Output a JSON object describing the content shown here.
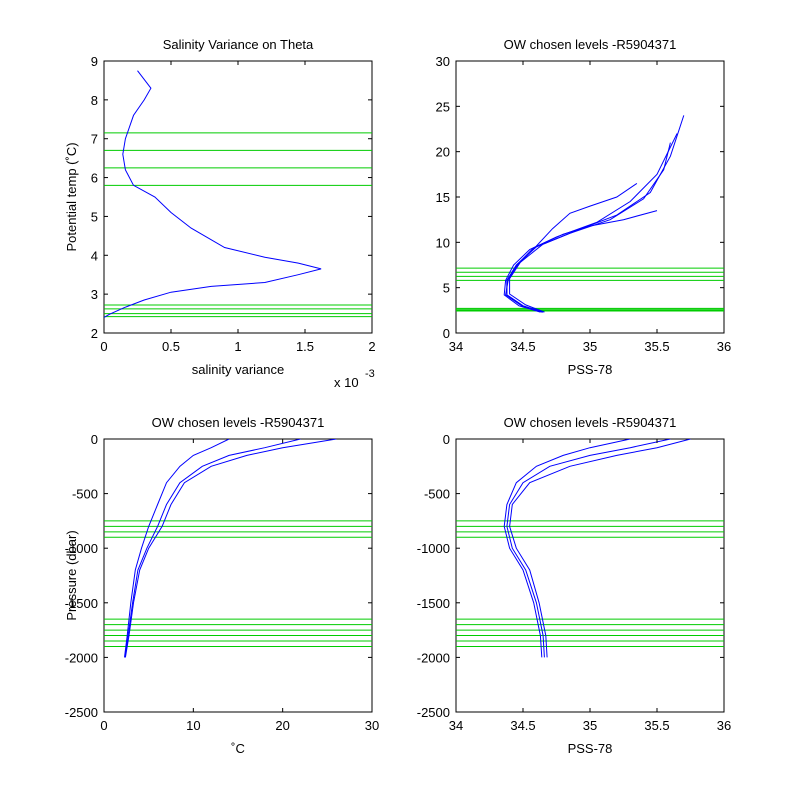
{
  "figure": {
    "colors": {
      "profile": "#0000ff",
      "levels": "#00cc00",
      "axes": "#000000"
    }
  },
  "chart_data": [
    {
      "id": "p1",
      "type": "line",
      "title": "Salinity Variance on Theta",
      "xlabel": "salinity variance",
      "ylabel": "Potential temp (˚C)",
      "x_multiplier": "x 10",
      "x_exponent": "-3",
      "xlim": [
        0,
        2
      ],
      "ylim": [
        2,
        9
      ],
      "xticks": [
        0,
        0.5,
        1,
        1.5,
        2
      ],
      "xticklabels": [
        "0",
        "0.5",
        "1",
        "1.5",
        "2"
      ],
      "yticks": [
        2,
        3,
        4,
        5,
        6,
        7,
        8,
        9
      ],
      "yticklabels": [
        "2",
        "3",
        "4",
        "5",
        "6",
        "7",
        "8",
        "9"
      ],
      "series": [
        {
          "x": [
            0.25,
            0.35,
            0.3,
            0.22,
            0.16,
            0.14,
            0.16,
            0.22,
            0.38,
            0.5,
            0.65,
            0.9,
            1.2,
            1.45,
            1.62,
            1.45,
            1.2,
            0.8,
            0.5,
            0.3,
            0.15,
            0.04,
            0.0
          ],
          "y": [
            8.75,
            8.3,
            8.0,
            7.6,
            7.0,
            6.6,
            6.2,
            5.8,
            5.5,
            5.1,
            4.7,
            4.2,
            3.95,
            3.8,
            3.65,
            3.5,
            3.3,
            3.2,
            3.05,
            2.85,
            2.65,
            2.48,
            2.4
          ]
        }
      ],
      "levels_y": [
        7.15,
        6.7,
        6.25,
        5.8,
        2.72,
        2.62,
        2.5,
        2.42
      ],
      "levels_axis": "y"
    },
    {
      "id": "p2",
      "type": "line",
      "title": "OW chosen levels -R5904371",
      "xlabel": "PSS-78",
      "ylabel": "",
      "xlim": [
        34,
        36
      ],
      "ylim": [
        0,
        30
      ],
      "xticks": [
        34,
        34.5,
        35,
        35.5,
        36
      ],
      "xticklabels": [
        "34",
        "34.5",
        "35",
        "35.5",
        "36"
      ],
      "yticks": [
        0,
        5,
        10,
        15,
        20,
        25,
        30
      ],
      "yticklabels": [
        "0",
        "5",
        "10",
        "15",
        "20",
        "25",
        "30"
      ],
      "series": [
        {
          "x": [
            34.65,
            34.5,
            34.38,
            34.38,
            34.45,
            34.6,
            34.85,
            35.15,
            35.4,
            35.55,
            35.6
          ],
          "y": [
            2.3,
            3.0,
            4.2,
            5.8,
            7.5,
            9.5,
            11.0,
            12.5,
            14.8,
            18.0,
            21.0
          ]
        },
        {
          "x": [
            34.63,
            34.47,
            34.36,
            34.37,
            34.43,
            34.55,
            34.75,
            35.05,
            35.3,
            35.5,
            35.65
          ],
          "y": [
            2.3,
            3.0,
            4.2,
            5.8,
            7.5,
            9.2,
            10.6,
            12.2,
            14.5,
            17.5,
            22.0
          ]
        },
        {
          "x": [
            34.66,
            34.52,
            34.4,
            34.4,
            34.48,
            34.65,
            34.9,
            35.2,
            35.45,
            35.6,
            35.7
          ],
          "y": [
            2.3,
            3.1,
            4.3,
            6.0,
            7.8,
            9.8,
            11.3,
            13.0,
            15.5,
            19.5,
            24.0
          ]
        },
        {
          "x": [
            34.64,
            34.49,
            34.37,
            34.39,
            34.46,
            34.58,
            34.8,
            35.0,
            35.25,
            35.5
          ],
          "y": [
            2.3,
            3.0,
            4.2,
            5.9,
            7.6,
            9.4,
            10.9,
            11.8,
            12.5,
            13.5
          ]
        },
        {
          "x": [
            34.65,
            34.5,
            34.38,
            34.38,
            34.46,
            34.6,
            34.72,
            34.85,
            35.0,
            35.2,
            35.35
          ],
          "y": [
            2.3,
            3.0,
            4.2,
            5.8,
            7.5,
            9.6,
            11.5,
            13.2,
            14.0,
            15.0,
            16.5
          ]
        }
      ],
      "levels_y": [
        7.15,
        6.7,
        6.25,
        5.8,
        2.72,
        2.62,
        2.5,
        2.42
      ],
      "levels_axis": "y"
    },
    {
      "id": "p3",
      "type": "line",
      "title": "OW chosen levels -R5904371",
      "xlabel": "˚C",
      "ylabel": "Pressure (dbar)",
      "xlim": [
        0,
        30
      ],
      "ylim": [
        -2500,
        0
      ],
      "xticks": [
        0,
        10,
        20,
        30
      ],
      "xticklabels": [
        "0",
        "10",
        "20",
        "30"
      ],
      "yticks": [
        -2500,
        -2000,
        -1500,
        -1000,
        -500,
        0
      ],
      "yticklabels": [
        "-2500",
        "-2000",
        "-1500",
        "-1000",
        "-500",
        "0"
      ],
      "series": [
        {
          "x": [
            26.0,
            20.0,
            16.0,
            12.0,
            9.0,
            7.5,
            6.5,
            5.0,
            4.0,
            3.3,
            2.8,
            2.4
          ],
          "y": [
            0,
            -80,
            -150,
            -250,
            -400,
            -600,
            -800,
            -1000,
            -1200,
            -1500,
            -1800,
            -2000
          ]
        },
        {
          "x": [
            14.0,
            12.0,
            10.0,
            8.5,
            7.0,
            6.0,
            5.0,
            4.2,
            3.5,
            3.0,
            2.6,
            2.3
          ],
          "y": [
            0,
            -80,
            -150,
            -250,
            -400,
            -600,
            -800,
            -1000,
            -1200,
            -1500,
            -1800,
            -2000
          ]
        },
        {
          "x": [
            22.0,
            18.0,
            14.0,
            11.0,
            8.5,
            7.0,
            6.0,
            4.8,
            3.8,
            3.2,
            2.7,
            2.35
          ],
          "y": [
            0,
            -80,
            -150,
            -250,
            -400,
            -600,
            -800,
            -1000,
            -1200,
            -1500,
            -1800,
            -2000
          ]
        }
      ],
      "levels_y": [
        -750,
        -800,
        -850,
        -900,
        -1650,
        -1700,
        -1750,
        -1800,
        -1850,
        -1900
      ],
      "levels_axis": "y"
    },
    {
      "id": "p4",
      "type": "line",
      "title": "OW chosen levels -R5904371",
      "xlabel": "PSS-78",
      "ylabel": "",
      "xlim": [
        34,
        36
      ],
      "ylim": [
        -2500,
        0
      ],
      "xticks": [
        34,
        34.5,
        35,
        35.5,
        36
      ],
      "xticklabels": [
        "34",
        "34.5",
        "35",
        "35.5",
        "36"
      ],
      "yticks": [
        -2500,
        -2000,
        -1500,
        -1000,
        -500,
        0
      ],
      "yticklabels": [
        "-2500",
        "-2000",
        "-1500",
        "-1000",
        "-500",
        "0"
      ],
      "series": [
        {
          "x": [
            35.6,
            35.3,
            35.0,
            34.7,
            34.5,
            34.4,
            34.38,
            34.42,
            34.52,
            34.6,
            34.65,
            34.66
          ],
          "y": [
            0,
            -80,
            -150,
            -250,
            -400,
            -600,
            -800,
            -1000,
            -1200,
            -1500,
            -1800,
            -2000
          ]
        },
        {
          "x": [
            35.3,
            35.0,
            34.8,
            34.6,
            34.45,
            34.38,
            34.36,
            34.4,
            34.5,
            34.58,
            34.63,
            34.64
          ],
          "y": [
            0,
            -80,
            -150,
            -250,
            -400,
            -600,
            -800,
            -1000,
            -1200,
            -1500,
            -1800,
            -2000
          ]
        },
        {
          "x": [
            35.75,
            35.5,
            35.2,
            34.85,
            34.55,
            34.42,
            34.4,
            34.45,
            34.55,
            34.62,
            34.67,
            34.68
          ],
          "y": [
            0,
            -80,
            -150,
            -250,
            -400,
            -600,
            -800,
            -1000,
            -1200,
            -1500,
            -1800,
            -2000
          ]
        }
      ],
      "levels_y": [
        -750,
        -800,
        -850,
        -900,
        -1650,
        -1700,
        -1750,
        -1800,
        -1850,
        -1900
      ],
      "levels_axis": "y"
    }
  ]
}
